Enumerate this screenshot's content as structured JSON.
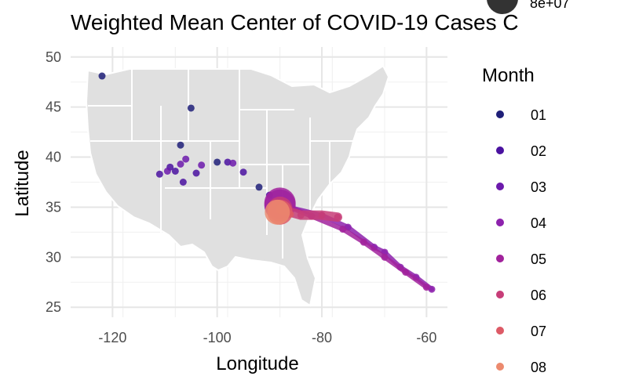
{
  "chart_data": {
    "type": "scatter",
    "title": "Weighted Mean Center of COVID-19 Cases C",
    "xlabel": "Longitude",
    "ylabel": "Latitude",
    "xlim": [
      -128,
      -56
    ],
    "ylim": [
      24,
      51
    ],
    "x_ticks": [
      -120,
      -100,
      -80,
      -60
    ],
    "y_ticks": [
      25,
      30,
      35,
      40,
      45,
      50
    ],
    "grid": true,
    "legend": {
      "title": "Month",
      "position": "right",
      "entries": [
        "01",
        "02",
        "03",
        "04",
        "05",
        "06",
        "07",
        "08"
      ],
      "colors": [
        "#1f1f78",
        "#4a12a0",
        "#6c1aac",
        "#8d22ad",
        "#a1229c",
        "#c73d78",
        "#dd5a66",
        "#ec8a6e"
      ],
      "size_label": "8e+07"
    },
    "series": [
      {
        "name": "01",
        "points": [
          [
            -122,
            48.1
          ],
          [
            -105,
            44.9
          ],
          [
            -107,
            41.2
          ],
          [
            -100,
            39.5
          ],
          [
            -92,
            37
          ]
        ]
      },
      {
        "name": "02",
        "points": [
          [
            -111,
            38.3
          ],
          [
            -109,
            39
          ],
          [
            -108,
            38.6
          ],
          [
            -106.5,
            37.5
          ],
          [
            -104,
            38.4
          ],
          [
            -98,
            39.5
          ],
          [
            -95,
            38.5
          ],
          [
            -90,
            36.2
          ]
        ]
      },
      {
        "name": "03",
        "points": [
          [
            -109.5,
            38.6
          ],
          [
            -107,
            39.3
          ],
          [
            -106,
            39.8
          ],
          [
            -103,
            39.2
          ],
          [
            -97,
            39.4
          ],
          [
            -89,
            35.5
          ],
          [
            -88,
            35.2
          ]
        ]
      },
      {
        "name": "04",
        "points": [
          [
            -88,
            35.2
          ],
          [
            -80,
            34.2
          ],
          [
            -75,
            33
          ],
          [
            -70,
            31
          ],
          [
            -68,
            30.5
          ],
          [
            -65,
            29
          ],
          [
            -62,
            28
          ],
          [
            -59,
            26.8
          ]
        ]
      },
      {
        "name": "05",
        "points": [
          [
            -88,
            35.4
          ],
          [
            -82,
            34.1
          ],
          [
            -76,
            32.8
          ],
          [
            -72,
            31.5
          ],
          [
            -68,
            30
          ],
          [
            -64,
            28.5
          ],
          [
            -60,
            27
          ]
        ]
      },
      {
        "name": "06",
        "points": [
          [
            -88,
            34.8
          ],
          [
            -84,
            34.2
          ],
          [
            -80,
            34.2
          ],
          [
            -77,
            34
          ]
        ]
      },
      {
        "name": "07",
        "points": [
          [
            -88,
            34.5
          ],
          [
            -86,
            34.3
          ]
        ]
      },
      {
        "name": "08",
        "points": [
          [
            -88.5,
            34.5
          ]
        ]
      }
    ]
  }
}
